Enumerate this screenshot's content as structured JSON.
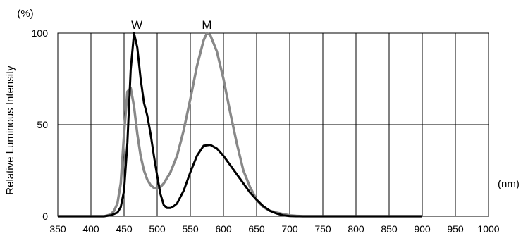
{
  "chart_data": {
    "type": "line",
    "title": "",
    "xlabel": "(nm)",
    "ylabel": "Relative Luminous Intensity",
    "yunit": "(%)",
    "xlim": [
      350,
      1000
    ],
    "ylim": [
      0,
      100
    ],
    "xticks": [
      "350",
      "400",
      "450",
      "500",
      "550",
      "600",
      "650",
      "700",
      "750",
      "800",
      "850",
      "900",
      "950",
      "1000"
    ],
    "yticks": [
      "0",
      "50",
      "100"
    ],
    "grid": true,
    "legend": "none",
    "series": [
      {
        "name": "W",
        "color": "#000000",
        "x": [
          350,
          420,
          430,
          440,
          445,
          450,
          455,
          460,
          465,
          470,
          475,
          480,
          485,
          490,
          495,
          500,
          505,
          510,
          515,
          520,
          525,
          530,
          540,
          550,
          560,
          570,
          580,
          590,
          600,
          610,
          620,
          630,
          640,
          650,
          660,
          670,
          680,
          690,
          700,
          710,
          750,
          800,
          900
        ],
        "y": [
          0,
          0,
          0.5,
          2,
          5,
          14,
          40,
          80,
          100,
          92,
          75,
          62,
          55,
          45,
          33,
          22,
          12,
          6,
          4.5,
          4.5,
          5.5,
          7,
          14,
          24,
          33,
          38.5,
          39,
          37,
          33,
          28,
          23,
          18,
          13,
          9,
          5.5,
          3,
          1.5,
          0.5,
          0.1,
          0,
          0,
          0,
          0
        ]
      },
      {
        "name": "M",
        "color": "#888888",
        "x": [
          350,
          420,
          430,
          435,
          440,
          445,
          450,
          455,
          460,
          465,
          470,
          475,
          480,
          485,
          490,
          495,
          500,
          505,
          510,
          520,
          530,
          540,
          550,
          560,
          570,
          575,
          580,
          590,
          600,
          610,
          620,
          630,
          640,
          650,
          660,
          670,
          680,
          690,
          700,
          710,
          720,
          750,
          800,
          900
        ],
        "y": [
          0,
          0,
          1,
          3,
          7,
          18,
          45,
          68,
          70,
          60,
          45,
          33,
          25,
          20,
          17,
          15.5,
          15,
          16,
          18,
          24,
          33,
          47,
          64,
          82,
          96,
          100,
          99,
          90,
          75,
          57,
          40,
          25,
          16,
          9,
          5,
          3,
          2,
          1.2,
          0.5,
          0.2,
          0,
          0,
          0,
          0
        ]
      }
    ]
  }
}
